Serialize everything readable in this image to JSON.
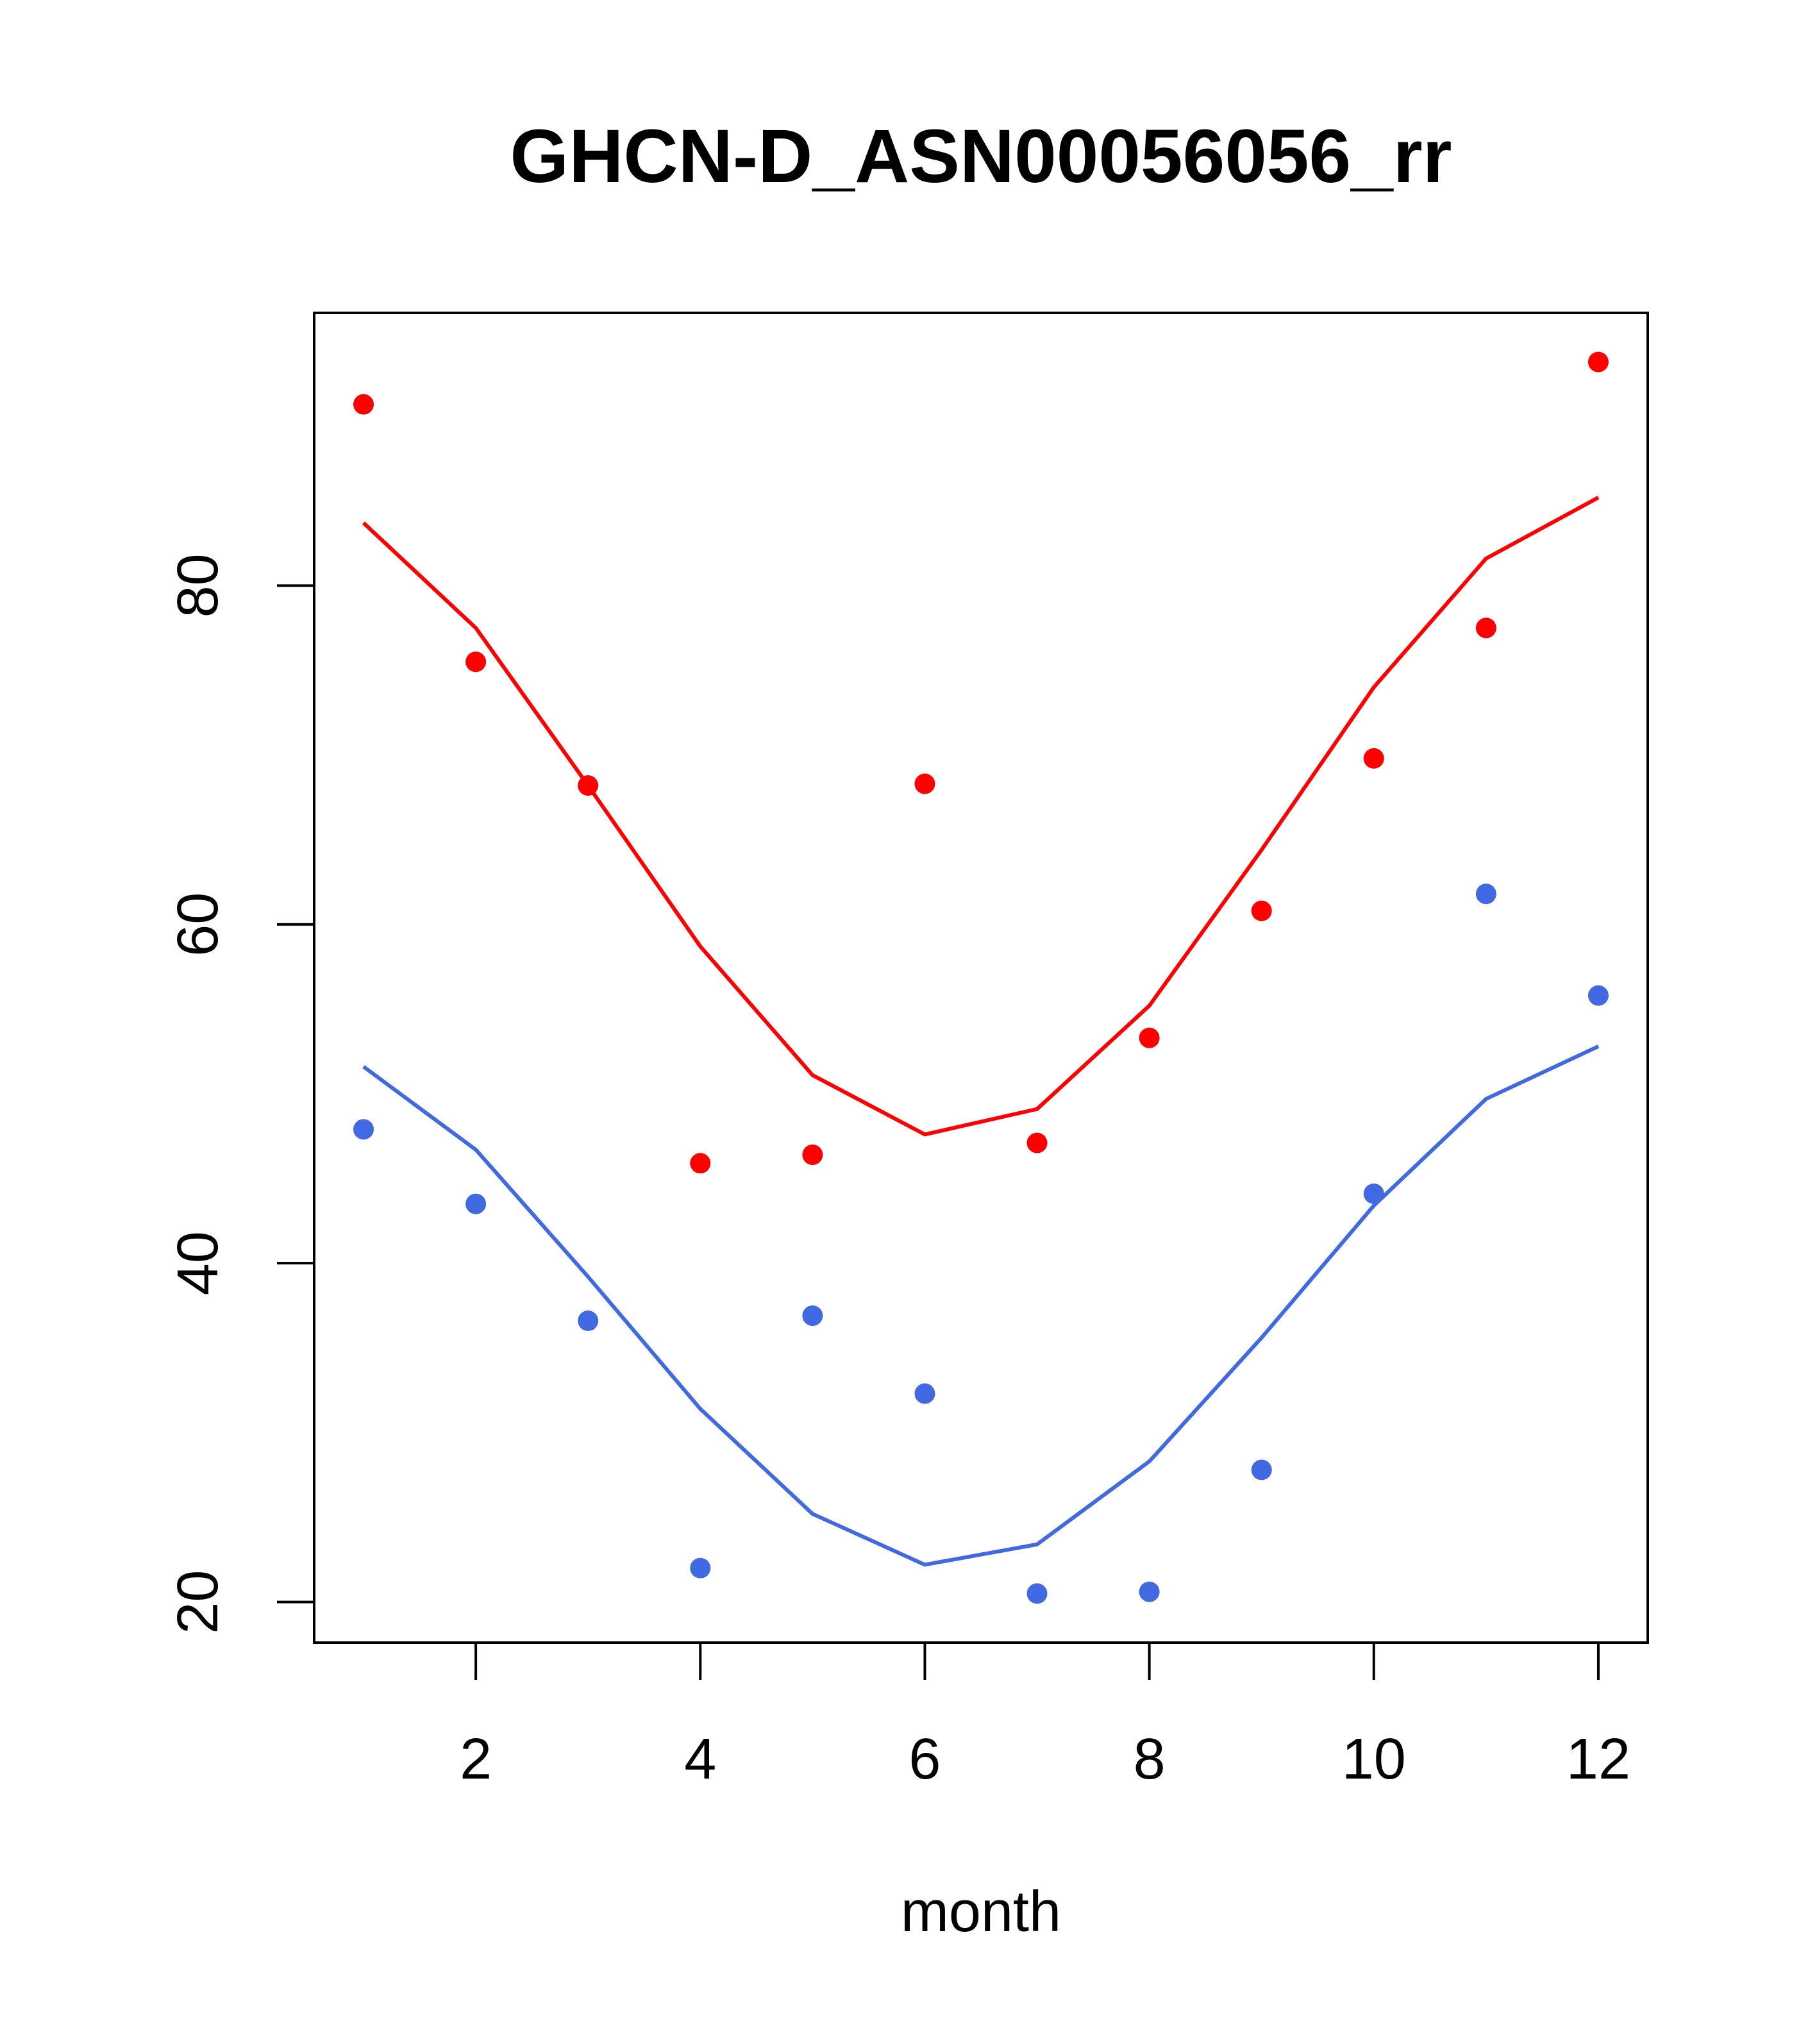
{
  "chart_data": {
    "type": "line",
    "title": "GHCN-D_ASN00056056_rr",
    "xlabel": "month",
    "ylabel": "",
    "xlim": [
      0.56,
      12.44
    ],
    "ylim": [
      17.6,
      96.1
    ],
    "xticks": [
      2,
      4,
      6,
      8,
      10,
      12
    ],
    "xtick_labels": [
      "2",
      "4",
      "6",
      "8",
      "10",
      "12"
    ],
    "yticks": [
      20,
      40,
      60,
      80
    ],
    "ytick_labels": [
      "20",
      "40",
      "60",
      "80"
    ],
    "grid": false,
    "x": [
      1,
      2,
      3,
      4,
      5,
      6,
      7,
      8,
      9,
      10,
      11,
      12
    ],
    "series": [
      {
        "name": "upper points",
        "kind": "points",
        "color": "#ff0000",
        "values": [
          90.7,
          75.5,
          68.2,
          45.9,
          46.4,
          68.3,
          47.1,
          53.3,
          60.8,
          69.8,
          77.5,
          93.2
        ]
      },
      {
        "name": "upper line",
        "kind": "line",
        "color": "#ff0000",
        "values": [
          83.7,
          77.5,
          68.2,
          58.7,
          51.1,
          47.6,
          49.1,
          55.2,
          64.4,
          74.0,
          81.6,
          85.2
        ]
      },
      {
        "name": "lower points",
        "kind": "points",
        "color": "#4169e1",
        "values": [
          47.9,
          43.5,
          36.6,
          22.0,
          36.9,
          32.3,
          20.5,
          20.6,
          27.8,
          44.1,
          61.8,
          55.8
        ]
      },
      {
        "name": "lower line",
        "kind": "line",
        "color": "#4169e1",
        "values": [
          51.6,
          46.7,
          39.2,
          31.4,
          25.2,
          22.2,
          23.4,
          28.3,
          35.6,
          43.4,
          49.7,
          52.8
        ]
      }
    ]
  }
}
